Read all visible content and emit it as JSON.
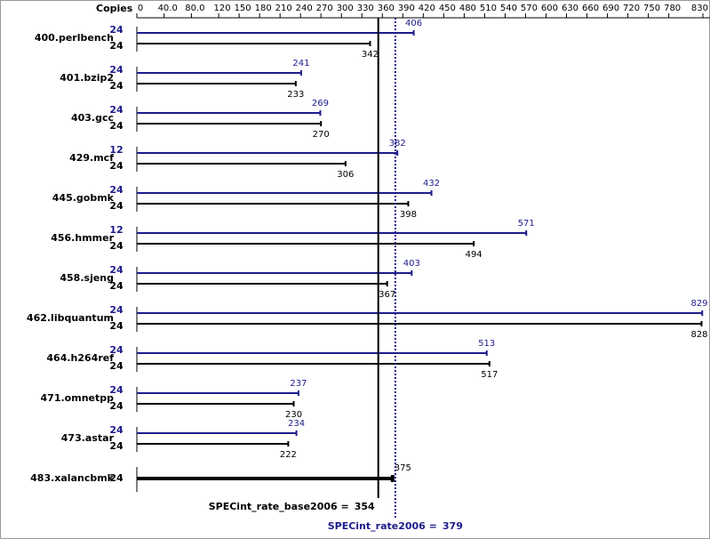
{
  "chart_data": {
    "type": "bar",
    "orientation": "horizontal",
    "copies_header": "Copies",
    "categories": [
      "400.perlbench",
      "401.bzip2",
      "403.gcc",
      "429.mcf",
      "445.gobmk",
      "456.hmmer",
      "458.sjeng",
      "462.libquantum",
      "464.h264ref",
      "471.omnetpp",
      "473.astar",
      "483.xalancbmk"
    ],
    "series": [
      {
        "color": "#1c1c8c",
        "copies": [
          24,
          24,
          24,
          12,
          24,
          12,
          24,
          24,
          24,
          24,
          24,
          null
        ],
        "values": [
          406,
          241,
          269,
          382,
          432,
          571,
          403,
          829,
          513,
          237,
          234,
          null
        ],
        "summary_label": "SPECint_rate2006 =",
        "summary_value": 379
      },
      {
        "color": "#000000",
        "copies": [
          24,
          24,
          24,
          24,
          24,
          24,
          24,
          24,
          24,
          24,
          24,
          24
        ],
        "values": [
          342,
          233,
          270,
          306,
          398,
          494,
          367,
          828,
          517,
          230,
          222,
          375
        ],
        "summary_label": "SPECint_rate_base2006 =",
        "summary_value": 354
      }
    ],
    "xlim": [
      0,
      830
    ],
    "xticks": [
      0,
      {
        "value": 40,
        "label": "40.0"
      },
      {
        "value": 80,
        "label": "80.0"
      },
      120,
      150,
      180,
      210,
      240,
      270,
      300,
      330,
      360,
      390,
      420,
      450,
      480,
      510,
      540,
      570,
      600,
      630,
      660,
      690,
      720,
      750,
      780,
      830
    ]
  }
}
